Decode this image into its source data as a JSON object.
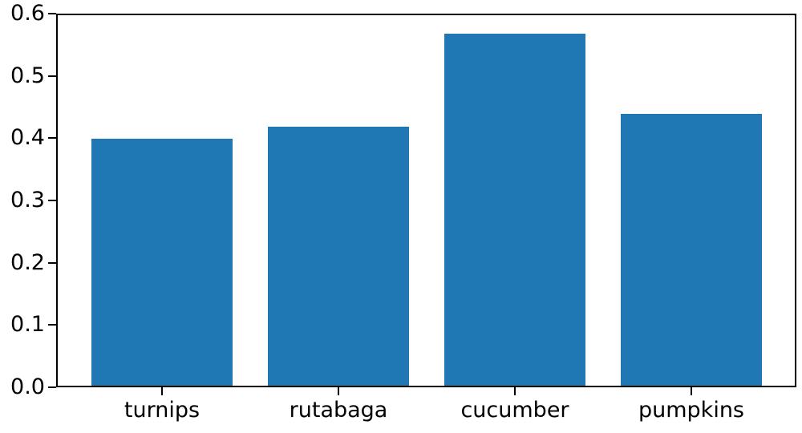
{
  "chart_data": {
    "type": "bar",
    "categories": [
      "turnips",
      "rutabaga",
      "cucumber",
      "pumpkins"
    ],
    "values": [
      0.4,
      0.42,
      0.57,
      0.44
    ],
    "title": "",
    "xlabel": "",
    "ylabel": "",
    "ylim": [
      0.0,
      0.6
    ],
    "ytick_values": [
      0.0,
      0.1,
      0.2,
      0.3,
      0.4,
      0.5,
      0.6
    ],
    "ytick_labels": [
      "0.0",
      "0.1",
      "0.2",
      "0.3",
      "0.4",
      "0.5",
      "0.6"
    ],
    "bar_color": "#1f77b4",
    "spine_color": "#000000",
    "tick_color": "#000000",
    "text_color": "#000000",
    "background_color": "#ffffff",
    "grid": false,
    "legend": null
  }
}
